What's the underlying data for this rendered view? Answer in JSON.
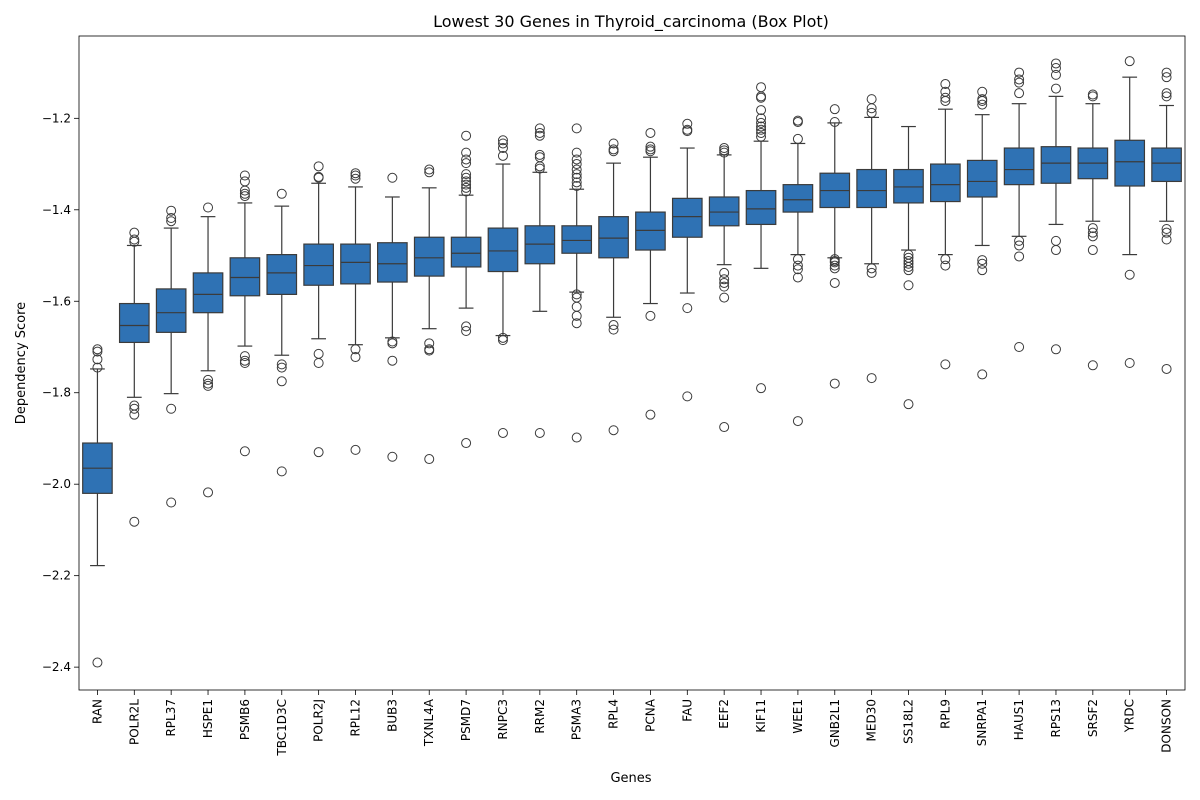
{
  "chart_data": {
    "type": "box",
    "title": "Lowest 30 Genes in Thyroid_carcinoma (Box Plot)",
    "xlabel": "Genes",
    "ylabel": "Dependency Score",
    "ylim": [
      -2.45,
      -1.02
    ],
    "yticks": [
      -2.4,
      -2.2,
      -2.0,
      -1.8,
      -1.6,
      -1.4,
      -1.2
    ],
    "ytick_labels": [
      "−2.4",
      "−2.2",
      "−2.0",
      "−1.8",
      "−1.6",
      "−1.4",
      "−1.2"
    ],
    "color": "#2f72b4",
    "grid": false,
    "categories": [
      "RAN",
      "POLR2L",
      "RPL37",
      "HSPE1",
      "PSMB6",
      "TBC1D3C",
      "POLR2J",
      "RPL12",
      "BUB3",
      "TXNL4A",
      "PSMD7",
      "RNPC3",
      "RRM2",
      "PSMA3",
      "RPL4",
      "PCNA",
      "FAU",
      "EEF2",
      "KIF11",
      "WEE1",
      "GNB2L1",
      "MED30",
      "SS18L2",
      "RPL9",
      "SNRPA1",
      "HAUS1",
      "RPS13",
      "SRSF2",
      "YRDC",
      "DONSON"
    ],
    "boxes": [
      {
        "q1": -2.02,
        "median": -1.965,
        "q3": -1.91,
        "whislo": -2.178,
        "whishi": -1.748,
        "fliers": [
          -2.39,
          -1.705,
          -1.71,
          -1.727,
          -1.745
        ]
      },
      {
        "q1": -1.69,
        "median": -1.653,
        "q3": -1.605,
        "whislo": -1.81,
        "whishi": -1.478,
        "fliers": [
          -2.082,
          -1.848,
          -1.835,
          -1.828,
          -1.45,
          -1.465,
          -1.47
        ]
      },
      {
        "q1": -1.668,
        "median": -1.625,
        "q3": -1.573,
        "whislo": -1.802,
        "whishi": -1.44,
        "fliers": [
          -2.04,
          -1.835,
          -1.425,
          -1.418,
          -1.402
        ]
      },
      {
        "q1": -1.625,
        "median": -1.585,
        "q3": -1.538,
        "whislo": -1.752,
        "whishi": -1.415,
        "fliers": [
          -2.018,
          -1.785,
          -1.78,
          -1.772,
          -1.395
        ]
      },
      {
        "q1": -1.588,
        "median": -1.548,
        "q3": -1.505,
        "whislo": -1.698,
        "whishi": -1.385,
        "fliers": [
          -1.928,
          -1.735,
          -1.73,
          -1.72,
          -1.37,
          -1.365,
          -1.358,
          -1.338,
          -1.325
        ]
      },
      {
        "q1": -1.585,
        "median": -1.538,
        "q3": -1.498,
        "whislo": -1.718,
        "whishi": -1.392,
        "fliers": [
          -1.972,
          -1.775,
          -1.745,
          -1.738,
          -1.365
        ]
      },
      {
        "q1": -1.565,
        "median": -1.522,
        "q3": -1.475,
        "whislo": -1.682,
        "whishi": -1.342,
        "fliers": [
          -1.93,
          -1.735,
          -1.715,
          -1.33,
          -1.328,
          -1.305
        ]
      },
      {
        "q1": -1.562,
        "median": -1.515,
        "q3": -1.475,
        "whislo": -1.695,
        "whishi": -1.35,
        "fliers": [
          -1.925,
          -1.722,
          -1.705,
          -1.332,
          -1.325,
          -1.32
        ]
      },
      {
        "q1": -1.558,
        "median": -1.518,
        "q3": -1.472,
        "whislo": -1.68,
        "whishi": -1.372,
        "fliers": [
          -1.94,
          -1.73,
          -1.692,
          -1.688,
          -1.33
        ]
      },
      {
        "q1": -1.545,
        "median": -1.505,
        "q3": -1.46,
        "whislo": -1.66,
        "whishi": -1.352,
        "fliers": [
          -1.945,
          -1.708,
          -1.705,
          -1.692,
          -1.318,
          -1.312
        ]
      },
      {
        "q1": -1.525,
        "median": -1.495,
        "q3": -1.46,
        "whislo": -1.615,
        "whishi": -1.368,
        "fliers": [
          -1.91,
          -1.665,
          -1.655,
          -1.36,
          -1.352,
          -1.345,
          -1.338,
          -1.33,
          -1.322,
          -1.298,
          -1.29,
          -1.275,
          -1.238
        ]
      },
      {
        "q1": -1.535,
        "median": -1.49,
        "q3": -1.44,
        "whislo": -1.675,
        "whishi": -1.3,
        "fliers": [
          -1.888,
          -1.685,
          -1.68,
          -1.282,
          -1.265,
          -1.255,
          -1.248
        ]
      },
      {
        "q1": -1.518,
        "median": -1.475,
        "q3": -1.435,
        "whislo": -1.622,
        "whishi": -1.318,
        "fliers": [
          -1.888,
          -1.31,
          -1.305,
          -1.285,
          -1.28,
          -1.238,
          -1.232,
          -1.222
        ]
      },
      {
        "q1": -1.495,
        "median": -1.467,
        "q3": -1.435,
        "whislo": -1.58,
        "whishi": -1.355,
        "fliers": [
          -1.898,
          -1.648,
          -1.632,
          -1.612,
          -1.592,
          -1.585,
          -1.348,
          -1.34,
          -1.33,
          -1.322,
          -1.312,
          -1.3,
          -1.29,
          -1.275,
          -1.222
        ]
      },
      {
        "q1": -1.505,
        "median": -1.462,
        "q3": -1.415,
        "whislo": -1.635,
        "whishi": -1.298,
        "fliers": [
          -1.882,
          -1.662,
          -1.652,
          -1.272,
          -1.268,
          -1.255
        ]
      },
      {
        "q1": -1.488,
        "median": -1.445,
        "q3": -1.405,
        "whislo": -1.605,
        "whishi": -1.285,
        "fliers": [
          -1.848,
          -1.632,
          -1.272,
          -1.268,
          -1.262,
          -1.232
        ]
      },
      {
        "q1": -1.46,
        "median": -1.415,
        "q3": -1.375,
        "whislo": -1.582,
        "whishi": -1.265,
        "fliers": [
          -1.808,
          -1.615,
          -1.228,
          -1.225,
          -1.212
        ]
      },
      {
        "q1": -1.435,
        "median": -1.405,
        "q3": -1.372,
        "whislo": -1.52,
        "whishi": -1.28,
        "fliers": [
          -1.875,
          -1.592,
          -1.568,
          -1.56,
          -1.552,
          -1.538,
          -1.275,
          -1.27,
          -1.265
        ]
      },
      {
        "q1": -1.432,
        "median": -1.398,
        "q3": -1.358,
        "whislo": -1.528,
        "whishi": -1.25,
        "fliers": [
          -1.79,
          -1.24,
          -1.232,
          -1.225,
          -1.218,
          -1.21,
          -1.2,
          -1.182,
          -1.155,
          -1.152,
          -1.132
        ]
      },
      {
        "q1": -1.405,
        "median": -1.378,
        "q3": -1.345,
        "whislo": -1.498,
        "whishi": -1.255,
        "fliers": [
          -1.862,
          -1.548,
          -1.53,
          -1.522,
          -1.508,
          -1.245,
          -1.208,
          -1.205
        ]
      },
      {
        "q1": -1.395,
        "median": -1.358,
        "q3": -1.32,
        "whislo": -1.505,
        "whishi": -1.21,
        "fliers": [
          -1.78,
          -1.56,
          -1.528,
          -1.522,
          -1.515,
          -1.512,
          -1.508,
          -1.208,
          -1.18
        ]
      },
      {
        "q1": -1.395,
        "median": -1.358,
        "q3": -1.312,
        "whislo": -1.518,
        "whishi": -1.198,
        "fliers": [
          -1.768,
          -1.538,
          -1.528,
          -1.188,
          -1.178,
          -1.158
        ]
      },
      {
        "q1": -1.385,
        "median": -1.35,
        "q3": -1.312,
        "whislo": -1.488,
        "whishi": -1.218,
        "fliers": [
          -1.825,
          -1.565,
          -1.532,
          -1.525,
          -1.518,
          -1.512,
          -1.505,
          -1.498
        ]
      },
      {
        "q1": -1.382,
        "median": -1.345,
        "q3": -1.3,
        "whislo": -1.498,
        "whishi": -1.18,
        "fliers": [
          -1.738,
          -1.522,
          -1.508,
          -1.162,
          -1.155,
          -1.142,
          -1.125
        ]
      },
      {
        "q1": -1.372,
        "median": -1.338,
        "q3": -1.292,
        "whislo": -1.478,
        "whishi": -1.192,
        "fliers": [
          -1.76,
          -1.532,
          -1.518,
          -1.51,
          -1.17,
          -1.162,
          -1.158,
          -1.142
        ]
      },
      {
        "q1": -1.345,
        "median": -1.312,
        "q3": -1.265,
        "whislo": -1.458,
        "whishi": -1.168,
        "fliers": [
          -1.7,
          -1.502,
          -1.478,
          -1.468,
          -1.145,
          -1.122,
          -1.115,
          -1.1
        ]
      },
      {
        "q1": -1.342,
        "median": -1.298,
        "q3": -1.262,
        "whislo": -1.432,
        "whishi": -1.152,
        "fliers": [
          -1.705,
          -1.488,
          -1.468,
          -1.135,
          -1.105,
          -1.09,
          -1.08
        ]
      },
      {
        "q1": -1.332,
        "median": -1.298,
        "q3": -1.265,
        "whislo": -1.425,
        "whishi": -1.168,
        "fliers": [
          -1.74,
          -1.488,
          -1.458,
          -1.45,
          -1.44,
          -1.152,
          -1.148
        ]
      },
      {
        "q1": -1.348,
        "median": -1.295,
        "q3": -1.248,
        "whislo": -1.498,
        "whishi": -1.11,
        "fliers": [
          -1.735,
          -1.542,
          -1.075
        ]
      },
      {
        "q1": -1.338,
        "median": -1.298,
        "q3": -1.265,
        "whislo": -1.425,
        "whishi": -1.172,
        "fliers": [
          -1.748,
          -1.465,
          -1.45,
          -1.442,
          -1.152,
          -1.145,
          -1.11,
          -1.1
        ]
      }
    ]
  }
}
